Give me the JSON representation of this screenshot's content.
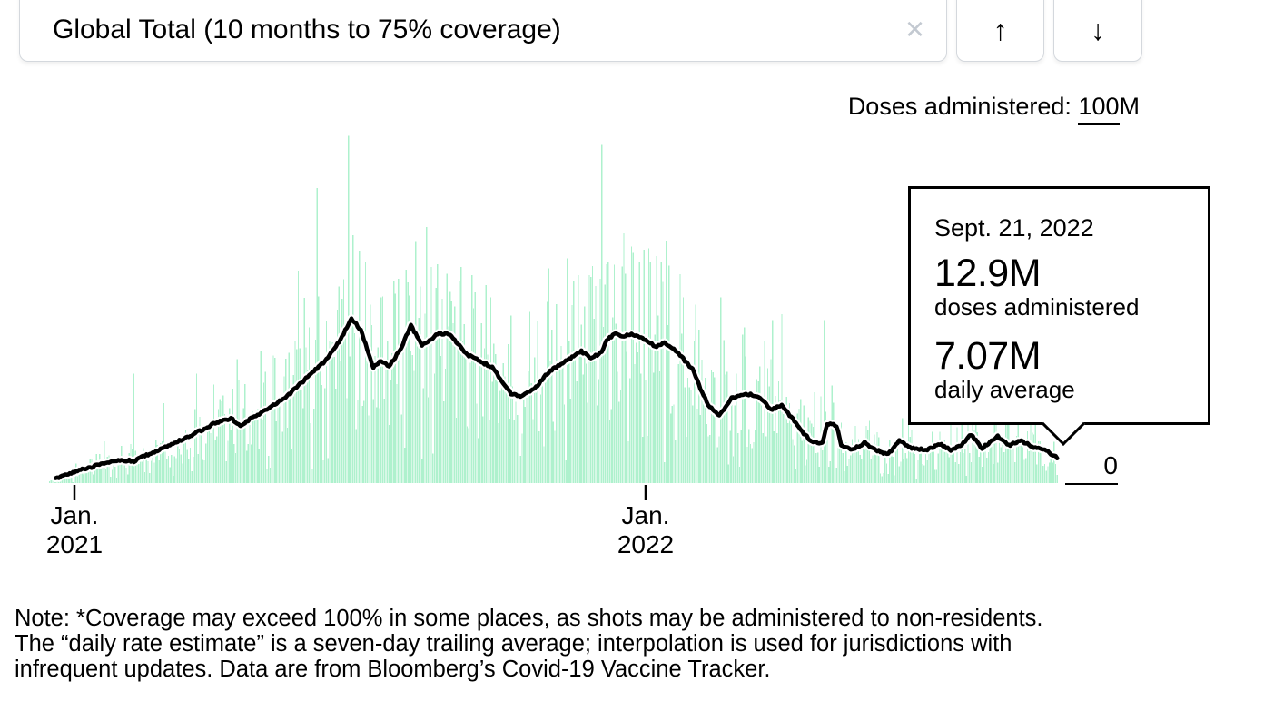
{
  "header": {
    "selector_label": "Global Total (10 months to 75% coverage)",
    "close_glyph": "×",
    "up_glyph": "↑",
    "down_glyph": "↓"
  },
  "axis": {
    "doses_label_prefix": "Doses administered: ",
    "doses_label_underlined": "100",
    "doses_label_suffix": "M",
    "zero_label": "0",
    "x_ticks": [
      {
        "month": "Jan.",
        "year": "2021"
      },
      {
        "month": "Jan.",
        "year": "2022"
      }
    ]
  },
  "tooltip": {
    "date": "Sept. 21, 2022",
    "doses_value": "12.9M",
    "doses_caption": "doses administered",
    "avg_value": "7.07M",
    "avg_caption": "daily average"
  },
  "note_lines": [
    "Note: *Coverage may exceed 100% in some places, as shots may be administered to non-residents.",
    "The “daily rate estimate” is a seven-day trailing average; interpolation is used for jurisdictions with",
    "infrequent updates. Data are from Bloomberg’s Covid-19 Vaccine Tracker."
  ],
  "colors": {
    "bar_green": "#aef1cd",
    "line_black": "#000000",
    "border_gray": "#d4d8dd",
    "close_gray": "#c3c9d1"
  },
  "chart_data": {
    "type": "bar+line",
    "title": "Doses administered: 100M scale",
    "description": "Daily global Covid-19 vaccine doses administered (green bars) and seven-day trailing daily average (black line), mid-Dec 2020 through Sept. 21, 2022",
    "x_axis": {
      "unit": "day index (0 = Jan. 1, 2021)",
      "start_day": -16,
      "end_day": 628,
      "tick_days": [
        0,
        365
      ],
      "tick_labels": [
        "Jan. 2021",
        "Jan. 2022"
      ]
    },
    "y_axis": {
      "unit": "doses per day, millions",
      "min": 0,
      "max": 100,
      "labels": [
        "0",
        "100M"
      ],
      "grid": false
    },
    "legend_position": "none",
    "line_series": {
      "name": "daily average (seven-day trailing)",
      "points_day_valueM": [
        [
          -12,
          1.2
        ],
        [
          -8,
          1.8
        ],
        [
          0,
          3.0
        ],
        [
          15,
          5.0
        ],
        [
          31,
          6.3
        ],
        [
          38,
          6.0
        ],
        [
          45,
          7.5
        ],
        [
          59,
          10.0
        ],
        [
          74,
          13.0
        ],
        [
          90,
          16.5
        ],
        [
          100,
          17.8
        ],
        [
          106,
          15.9
        ],
        [
          120,
          19.5
        ],
        [
          135,
          23.5
        ],
        [
          150,
          29.5
        ],
        [
          160,
          33.5
        ],
        [
          170,
          39.5
        ],
        [
          177,
          45.2
        ],
        [
          183,
          42.0
        ],
        [
          191,
          31.8
        ],
        [
          196,
          33.7
        ],
        [
          201,
          32.0
        ],
        [
          208,
          36.5
        ],
        [
          215,
          43.2
        ],
        [
          222,
          37.9
        ],
        [
          228,
          39.5
        ],
        [
          232,
          41.1
        ],
        [
          240,
          40.9
        ],
        [
          250,
          35.5
        ],
        [
          258,
          33.7
        ],
        [
          267,
          31.8
        ],
        [
          279,
          24.6
        ],
        [
          285,
          23.9
        ],
        [
          295,
          26.4
        ],
        [
          303,
          30.5
        ],
        [
          310,
          32.5
        ],
        [
          318,
          34.5
        ],
        [
          324,
          36.2
        ],
        [
          330,
          34.2
        ],
        [
          337,
          36.0
        ],
        [
          340,
          39.2
        ],
        [
          345,
          41.0
        ],
        [
          350,
          40.4
        ],
        [
          356,
          40.9
        ],
        [
          365,
          39.4
        ],
        [
          372,
          37.4
        ],
        [
          377,
          38.6
        ],
        [
          385,
          36.0
        ],
        [
          395,
          31.3
        ],
        [
          400,
          26.0
        ],
        [
          405,
          21.4
        ],
        [
          412,
          18.5
        ],
        [
          420,
          23.4
        ],
        [
          430,
          24.4
        ],
        [
          437,
          23.9
        ],
        [
          445,
          20.2
        ],
        [
          452,
          21.4
        ],
        [
          458,
          18.0
        ],
        [
          460,
          17.2
        ],
        [
          465,
          14.0
        ],
        [
          472,
          11.1
        ],
        [
          478,
          11.1
        ],
        [
          481,
          16.3
        ],
        [
          487,
          15.8
        ],
        [
          490,
          10.3
        ],
        [
          497,
          9.1
        ],
        [
          505,
          11.1
        ],
        [
          512,
          9.1
        ],
        [
          520,
          7.9
        ],
        [
          527,
          11.6
        ],
        [
          535,
          9.6
        ],
        [
          545,
          9.1
        ],
        [
          553,
          10.8
        ],
        [
          560,
          9.1
        ],
        [
          567,
          10.5
        ],
        [
          573,
          13.3
        ],
        [
          580,
          9.6
        ],
        [
          590,
          12.8
        ],
        [
          597,
          10.3
        ],
        [
          605,
          11.6
        ],
        [
          613,
          9.9
        ],
        [
          620,
          9.1
        ],
        [
          628,
          7.07
        ]
      ]
    },
    "bar_series": {
      "name": "doses administered daily",
      "style": "dense daily bars fluctuating around the average with reporting spikes and weekend dips",
      "spikes_day_valueM": [
        [
          19,
          11.5
        ],
        [
          38,
          30
        ],
        [
          57,
          22
        ],
        [
          78,
          30
        ],
        [
          89,
          27
        ],
        [
          104,
          34
        ],
        [
          127,
          35
        ],
        [
          144,
          37
        ],
        [
          172,
          56
        ],
        [
          189,
          49
        ],
        [
          196,
          51
        ],
        [
          205,
          52
        ],
        [
          221,
          54
        ],
        [
          243,
          48.5
        ],
        [
          255,
          48
        ],
        [
          266,
          51
        ],
        [
          279,
          46
        ],
        [
          291,
          47
        ],
        [
          303,
          59
        ],
        [
          316,
          39
        ],
        [
          331,
          59.6
        ],
        [
          337,
          92.9
        ],
        [
          341,
          60.8
        ],
        [
          345,
          60
        ],
        [
          356,
          65
        ],
        [
          367,
          64.5
        ],
        [
          376,
          55.2
        ],
        [
          397,
          49
        ],
        [
          413,
          51
        ],
        [
          446,
          44.8
        ],
        [
          479,
          44.8
        ],
        [
          533,
          22.7
        ],
        [
          560,
          26
        ],
        [
          576,
          24
        ],
        [
          614,
          22.7
        ]
      ]
    },
    "highlight_point": {
      "day": 628,
      "date": "Sept. 21, 2022",
      "doses_M": 12.9,
      "daily_average_M": 7.07
    }
  }
}
